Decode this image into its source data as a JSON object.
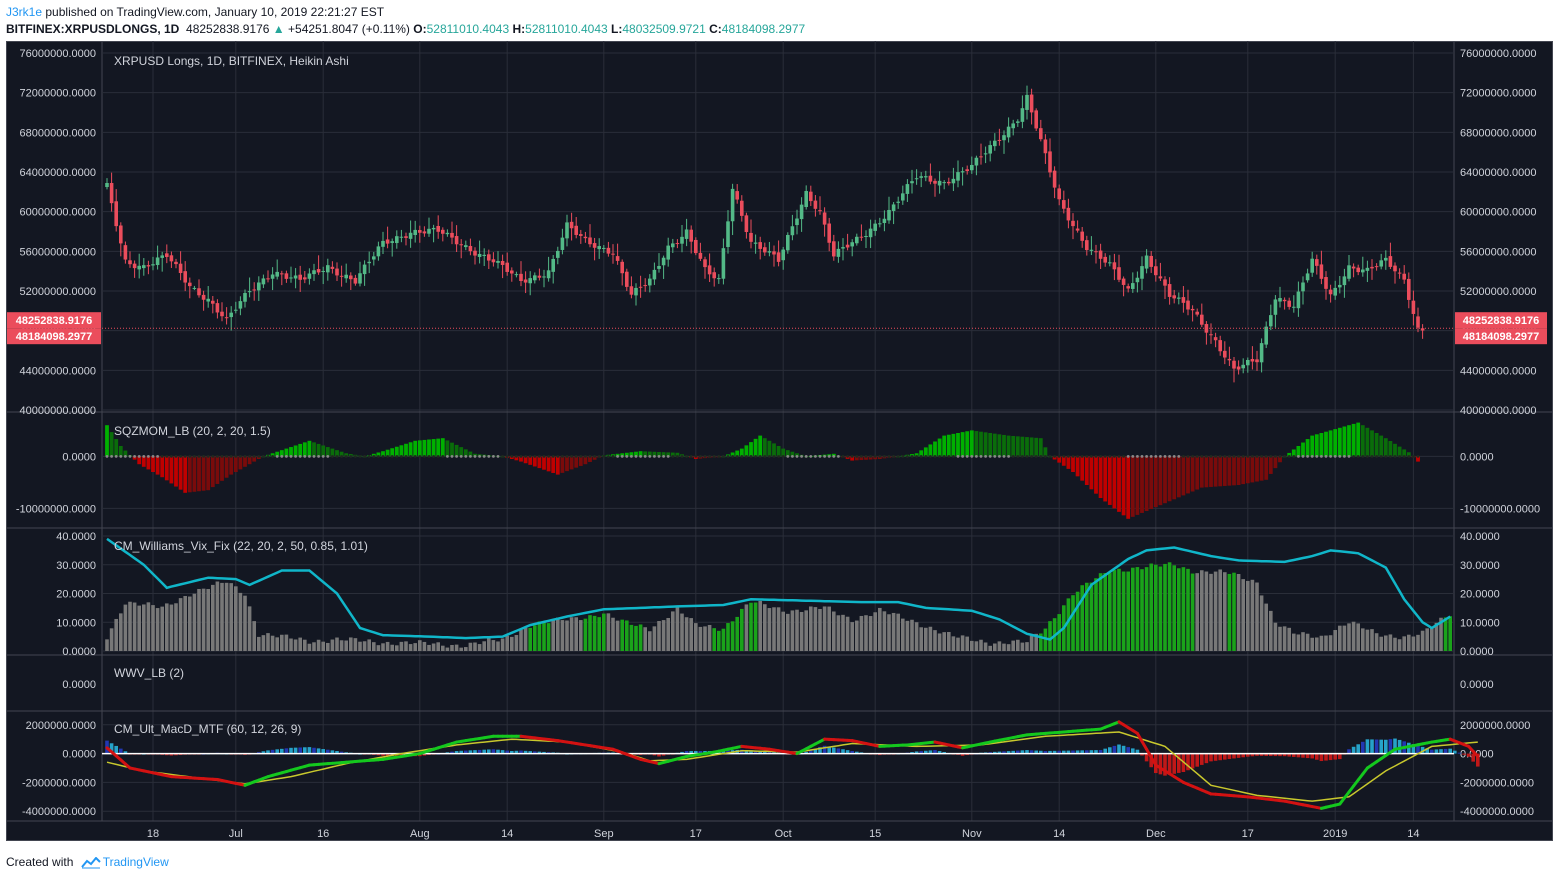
{
  "header": {
    "author": "J3rk1e",
    "published_text": "published on TradingView.com, January 10, 2019 22:21:27 EST",
    "symbol": "BITFINEX:XRPUSDLONGS, 1D",
    "last": "48252838.9176",
    "arrow": "▲",
    "change": "+54251.8047 (+0.11%)",
    "o_label": "O:",
    "o": "52811010.4043",
    "h_label": "H:",
    "h": "52811010.4043",
    "l_label": "L:",
    "l": "48032509.9721",
    "c_label": "C:",
    "c": "48184098.2977"
  },
  "footer": {
    "created_with": "Created with",
    "brand": "TradingView"
  },
  "colors": {
    "background": "#131722",
    "grid": "#2a2e39",
    "text": "#d1d4dc",
    "bull": "#53b987",
    "bear": "#eb4d5c",
    "price_tag": "#eb4d5c",
    "sqz_up": "#00b000",
    "sqz_down": "#c00000",
    "vix_line": "#10b6c9",
    "vix_green": "#1aa31a",
    "vix_gray": "#787878",
    "macd_up": "#14c81e",
    "macd_down": "#d31212",
    "signal": "#c8c82d",
    "hist_up": "#26a3c9",
    "hist_up2": "#2238b3",
    "hist_down": "#c01818"
  },
  "chart_data": [
    {
      "type": "candlestick",
      "title": "XRPUSD Longs, 1D, BITFINEX, Heikin Ashi",
      "x_tick_labels": [
        "18",
        "Jul",
        "16",
        "Aug",
        "14",
        "Sep",
        "17",
        "Oct",
        "15",
        "Nov",
        "14",
        "Dec",
        "17",
        "2019",
        "14"
      ],
      "ylim": [
        40000000,
        76000000
      ],
      "y_tick_labels": [
        "76000000.0000",
        "72000000.0000",
        "68000000.0000",
        "64000000.0000",
        "60000000.0000",
        "56000000.0000",
        "52000000.0000",
        "48000000.0000",
        "44000000.0000",
        "40000000.0000"
      ],
      "price_tags": [
        "48252838.9176",
        "48184098.2977"
      ],
      "last_price": 48250000,
      "anchors": [
        [
          0,
          62500000
        ],
        [
          4,
          55000000
        ],
        [
          8,
          54500000
        ],
        [
          13,
          55500000
        ],
        [
          18,
          52500000
        ],
        [
          22,
          51200000
        ],
        [
          26,
          49000000
        ],
        [
          31,
          52000000
        ],
        [
          36,
          54000000
        ],
        [
          42,
          53000000
        ],
        [
          48,
          54500000
        ],
        [
          54,
          53000000
        ],
        [
          60,
          56800000
        ],
        [
          66,
          58000000
        ],
        [
          72,
          58000000
        ],
        [
          78,
          56500000
        ],
        [
          84,
          55000000
        ],
        [
          90,
          53000000
        ],
        [
          96,
          54000000
        ],
        [
          100,
          58500000
        ],
        [
          104,
          57000000
        ],
        [
          110,
          56000000
        ],
        [
          114,
          51500000
        ],
        [
          118,
          53000000
        ],
        [
          122,
          56500000
        ],
        [
          126,
          58000000
        ],
        [
          130,
          54000000
        ],
        [
          133,
          53000000
        ],
        [
          136,
          62500000
        ],
        [
          140,
          57000000
        ],
        [
          146,
          55000000
        ],
        [
          152,
          62000000
        ],
        [
          155,
          60000000
        ],
        [
          158,
          55500000
        ],
        [
          164,
          57500000
        ],
        [
          170,
          60000000
        ],
        [
          176,
          63500000
        ],
        [
          182,
          63000000
        ],
        [
          188,
          64500000
        ],
        [
          194,
          67500000
        ],
        [
          198,
          69500000
        ],
        [
          200,
          71500000
        ],
        [
          203,
          67000000
        ],
        [
          207,
          61000000
        ],
        [
          213,
          56500000
        ],
        [
          218,
          54500000
        ],
        [
          222,
          52000000
        ],
        [
          226,
          55500000
        ],
        [
          231,
          51500000
        ],
        [
          236,
          50000000
        ],
        [
          241,
          47000000
        ],
        [
          245,
          44000000
        ],
        [
          250,
          45000000
        ],
        [
          254,
          51500000
        ],
        [
          258,
          50500000
        ],
        [
          262,
          55000000
        ],
        [
          266,
          51500000
        ],
        [
          270,
          54500000
        ],
        [
          274,
          54000000
        ],
        [
          278,
          55000000
        ],
        [
          282,
          53200000
        ],
        [
          285,
          48200000
        ]
      ]
    },
    {
      "type": "histogram",
      "title": "SQZMOM_LB (20, 2, 20, 1.5)",
      "ylim": [
        -13000000,
        7000000
      ],
      "y_tick_labels": [
        "0.0000",
        "-10000000.0000"
      ],
      "anchors": [
        [
          0,
          6000000
        ],
        [
          3,
          2000000
        ],
        [
          7,
          -1500000
        ],
        [
          12,
          -4000000
        ],
        [
          17,
          -7000000
        ],
        [
          22,
          -6500000
        ],
        [
          27,
          -3500000
        ],
        [
          34,
          0
        ],
        [
          36,
          600000
        ],
        [
          44,
          3000000
        ],
        [
          52,
          600000
        ],
        [
          56,
          0
        ],
        [
          60,
          1000000
        ],
        [
          67,
          3000000
        ],
        [
          73,
          3500000
        ],
        [
          80,
          500000
        ],
        [
          86,
          0
        ],
        [
          90,
          -1000000
        ],
        [
          98,
          -3500000
        ],
        [
          104,
          -1500000
        ],
        [
          108,
          200000
        ],
        [
          116,
          1000000
        ],
        [
          124,
          700000
        ],
        [
          128,
          -500000
        ],
        [
          134,
          0
        ],
        [
          138,
          1500000
        ],
        [
          142,
          4000000
        ],
        [
          147,
          1500000
        ],
        [
          152,
          0
        ],
        [
          158,
          500000
        ],
        [
          162,
          -800000
        ],
        [
          168,
          -500000
        ],
        [
          172,
          0
        ],
        [
          176,
          600000
        ],
        [
          182,
          4000000
        ],
        [
          188,
          5000000
        ],
        [
          196,
          4000000
        ],
        [
          203,
          3500000
        ],
        [
          205,
          0
        ],
        [
          210,
          -3000000
        ],
        [
          216,
          -8000000
        ],
        [
          222,
          -12000000
        ],
        [
          230,
          -9000000
        ],
        [
          238,
          -6000000
        ],
        [
          246,
          -5500000
        ],
        [
          252,
          -4500000
        ],
        [
          256,
          0
        ],
        [
          262,
          4000000
        ],
        [
          272,
          6500000
        ],
        [
          278,
          3500000
        ],
        [
          283,
          800000
        ],
        [
          285,
          -1000000
        ]
      ]
    },
    {
      "type": "line+bar",
      "title": "CM_Williams_Vix_Fix (22, 20, 2, 50, 0.85, 1.01)",
      "ylim": [
        0,
        40
      ],
      "y_tick_labels": [
        "40.0000",
        "30.0000",
        "20.0000",
        "10.0000",
        "0.0000"
      ],
      "line_anchors": [
        [
          0,
          39
        ],
        [
          8,
          30
        ],
        [
          13,
          22
        ],
        [
          22,
          25.5
        ],
        [
          28,
          25
        ],
        [
          31,
          23
        ],
        [
          38,
          28
        ],
        [
          44,
          28
        ],
        [
          50,
          20
        ],
        [
          55,
          8
        ],
        [
          60,
          5.5
        ],
        [
          70,
          5
        ],
        [
          78,
          4.5
        ],
        [
          86,
          5
        ],
        [
          92,
          9
        ],
        [
          100,
          12
        ],
        [
          108,
          14.5
        ],
        [
          116,
          15
        ],
        [
          124,
          15.5
        ],
        [
          134,
          16
        ],
        [
          140,
          18
        ],
        [
          152,
          17.5
        ],
        [
          164,
          17
        ],
        [
          172,
          17
        ],
        [
          178,
          15
        ],
        [
          188,
          14
        ],
        [
          194,
          11
        ],
        [
          200,
          6
        ],
        [
          205,
          4
        ],
        [
          208,
          8
        ],
        [
          214,
          23
        ],
        [
          222,
          32
        ],
        [
          226,
          35
        ],
        [
          232,
          36
        ],
        [
          240,
          33
        ],
        [
          246,
          31.5
        ],
        [
          256,
          31
        ],
        [
          262,
          33
        ],
        [
          266,
          35
        ],
        [
          272,
          34
        ],
        [
          278,
          29
        ],
        [
          282,
          18
        ],
        [
          286,
          10
        ],
        [
          288,
          8
        ],
        [
          292,
          12
        ]
      ],
      "bar_anchors": [
        [
          0,
          5
        ],
        [
          4,
          17
        ],
        [
          12,
          15
        ],
        [
          18,
          20
        ],
        [
          26,
          24
        ],
        [
          30,
          20
        ],
        [
          33,
          6
        ],
        [
          44,
          3.5
        ],
        [
          50,
          4
        ],
        [
          60,
          3
        ],
        [
          70,
          2.5
        ],
        [
          78,
          2
        ],
        [
          86,
          4
        ],
        [
          92,
          9
        ],
        [
          100,
          11
        ],
        [
          108,
          13
        ],
        [
          112,
          10
        ],
        [
          118,
          8
        ],
        [
          124,
          14.5
        ],
        [
          128,
          9
        ],
        [
          134,
          8
        ],
        [
          140,
          17
        ],
        [
          148,
          14
        ],
        [
          156,
          15
        ],
        [
          162,
          11
        ],
        [
          168,
          14
        ],
        [
          176,
          10
        ],
        [
          184,
          5
        ],
        [
          192,
          3
        ],
        [
          200,
          3
        ],
        [
          204,
          8
        ],
        [
          210,
          20
        ],
        [
          218,
          28
        ],
        [
          224,
          29
        ],
        [
          232,
          30
        ],
        [
          236,
          28
        ],
        [
          244,
          27
        ],
        [
          250,
          24
        ],
        [
          254,
          10
        ],
        [
          258,
          6
        ],
        [
          264,
          5
        ],
        [
          270,
          10
        ],
        [
          276,
          6
        ],
        [
          282,
          5
        ],
        [
          286,
          6
        ],
        [
          292,
          13
        ]
      ],
      "green_ranges": [
        [
          92,
          96
        ],
        [
          104,
          108
        ],
        [
          112,
          116
        ],
        [
          132,
          138
        ],
        [
          140,
          141
        ],
        [
          203,
          236
        ],
        [
          244,
          245
        ],
        [
          291,
          293
        ]
      ]
    },
    {
      "type": "indicator",
      "title": "WWV_LB (2)",
      "y_tick_labels": [
        "0.0000"
      ]
    },
    {
      "type": "line+histogram",
      "title": "CM_Ult_MacD_MTF (60, 12, 26, 9)",
      "ylim": [
        -4400000,
        2400000
      ],
      "y_tick_labels": [
        "2000000.0000",
        "0.0000",
        "-2000000.0000",
        "-4000000.0000"
      ],
      "macd_anchors": [
        [
          0,
          400000
        ],
        [
          5,
          -1000000
        ],
        [
          14,
          -1600000
        ],
        [
          24,
          -1800000
        ],
        [
          30,
          -2200000
        ],
        [
          35,
          -1600000
        ],
        [
          44,
          -800000
        ],
        [
          60,
          -400000
        ],
        [
          68,
          0
        ],
        [
          76,
          800000
        ],
        [
          84,
          1200000
        ],
        [
          90,
          1200000
        ],
        [
          98,
          900000
        ],
        [
          104,
          600000
        ],
        [
          110,
          300000
        ],
        [
          116,
          -400000
        ],
        [
          120,
          -700000
        ],
        [
          126,
          -200000
        ],
        [
          132,
          100000
        ],
        [
          138,
          500000
        ],
        [
          144,
          300000
        ],
        [
          150,
          0
        ],
        [
          156,
          1000000
        ],
        [
          162,
          900000
        ],
        [
          168,
          500000
        ],
        [
          174,
          600000
        ],
        [
          180,
          800000
        ],
        [
          186,
          400000
        ],
        [
          192,
          800000
        ],
        [
          200,
          1300000
        ],
        [
          208,
          1500000
        ],
        [
          216,
          1700000
        ],
        [
          220,
          2200000
        ],
        [
          224,
          1400000
        ],
        [
          228,
          -800000
        ],
        [
          234,
          -2000000
        ],
        [
          240,
          -2800000
        ],
        [
          248,
          -3000000
        ],
        [
          256,
          -3300000
        ],
        [
          264,
          -3800000
        ],
        [
          268,
          -3500000
        ],
        [
          274,
          -1000000
        ],
        [
          280,
          300000
        ],
        [
          288,
          800000
        ],
        [
          292,
          1000000
        ],
        [
          296,
          500000
        ],
        [
          298,
          -200000
        ]
      ],
      "signal_anchors": [
        [
          0,
          -600000
        ],
        [
          8,
          -1200000
        ],
        [
          20,
          -1700000
        ],
        [
          30,
          -2100000
        ],
        [
          40,
          -1600000
        ],
        [
          52,
          -700000
        ],
        [
          64,
          0
        ],
        [
          76,
          600000
        ],
        [
          88,
          1000000
        ],
        [
          100,
          800000
        ],
        [
          112,
          100000
        ],
        [
          118,
          -500000
        ],
        [
          126,
          -400000
        ],
        [
          138,
          200000
        ],
        [
          150,
          100000
        ],
        [
          162,
          700000
        ],
        [
          176,
          500000
        ],
        [
          190,
          600000
        ],
        [
          204,
          1200000
        ],
        [
          220,
          1500000
        ],
        [
          230,
          500000
        ],
        [
          240,
          -2200000
        ],
        [
          250,
          -2900000
        ],
        [
          262,
          -3300000
        ],
        [
          270,
          -3000000
        ],
        [
          278,
          -1200000
        ],
        [
          288,
          500000
        ],
        [
          298,
          800000
        ]
      ]
    }
  ]
}
